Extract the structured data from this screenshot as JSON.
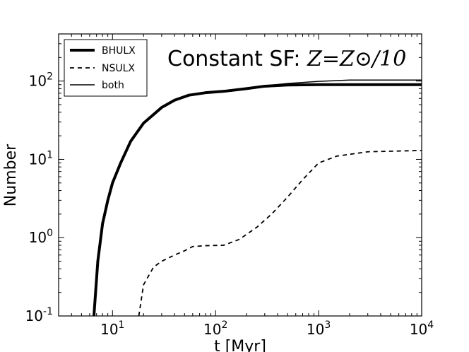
{
  "chart_data": {
    "type": "line",
    "title_prefix": "Constant SF: ",
    "title_math": "Z=Z⊙/10",
    "xlabel": "t [Myr]",
    "ylabel": "Number",
    "xscale": "log",
    "yscale": "log",
    "xlim": [
      3,
      10000
    ],
    "ylim": [
      0.1,
      400
    ],
    "x_ticks": [
      {
        "value": 10,
        "base": "10",
        "exp": "1"
      },
      {
        "value": 100,
        "base": "10",
        "exp": "2"
      },
      {
        "value": 1000,
        "base": "10",
        "exp": "3"
      },
      {
        "value": 10000,
        "base": "10",
        "exp": "4"
      }
    ],
    "y_ticks": [
      {
        "value": 0.1,
        "base": "10",
        "exp": "-1"
      },
      {
        "value": 1,
        "base": "10",
        "exp": "0"
      },
      {
        "value": 10,
        "base": "10",
        "exp": "1"
      },
      {
        "value": 100,
        "base": "10",
        "exp": "2"
      }
    ],
    "legend_position": "top-left",
    "series": [
      {
        "name": "BHULX",
        "style": "thick-solid",
        "color": "#000000",
        "x": [
          6.6,
          7.2,
          8.0,
          9.0,
          10.0,
          12.0,
          15.0,
          20.0,
          30.0,
          40.0,
          55.0,
          80.0,
          120.0,
          200.0,
          300.0,
          500.0,
          1000.0,
          3000.0,
          10000.0
        ],
        "y": [
          0.1,
          0.5,
          1.5,
          3.0,
          5.0,
          9.0,
          17.0,
          29.0,
          46.0,
          57.0,
          66.0,
          71.0,
          74.0,
          80.0,
          86.0,
          89.0,
          90.0,
          90.0,
          90.0
        ]
      },
      {
        "name": "NSULX",
        "style": "dashed",
        "color": "#000000",
        "x": [
          18.0,
          20.0,
          25.0,
          30.0,
          40.0,
          50.0,
          60.0,
          80.0,
          120.0,
          170.0,
          250.0,
          350.0,
          500.0,
          700.0,
          1000.0,
          1500.0,
          3000.0,
          10000.0
        ],
        "y": [
          0.1,
          0.25,
          0.42,
          0.5,
          0.6,
          0.68,
          0.77,
          0.79,
          0.8,
          0.95,
          1.35,
          2.0,
          3.3,
          5.5,
          9.0,
          11.0,
          12.5,
          13.0
        ]
      },
      {
        "name": "both",
        "style": "thin-solid",
        "color": "#000000",
        "x": [
          6.6,
          7.2,
          8.0,
          9.0,
          10.0,
          12.0,
          15.0,
          20.0,
          30.0,
          40.0,
          55.0,
          80.0,
          120.0,
          200.0,
          300.0,
          500.0,
          1000.0,
          2000.0,
          3000.0,
          10000.0
        ],
        "y": [
          0.1,
          0.5,
          1.5,
          3.0,
          5.0,
          9.0,
          17.0,
          29.0,
          46.0,
          57.0,
          66.0,
          71.0,
          74.0,
          81.0,
          87.0,
          93.0,
          99.0,
          103.0,
          103.0,
          103.0
        ]
      }
    ]
  }
}
